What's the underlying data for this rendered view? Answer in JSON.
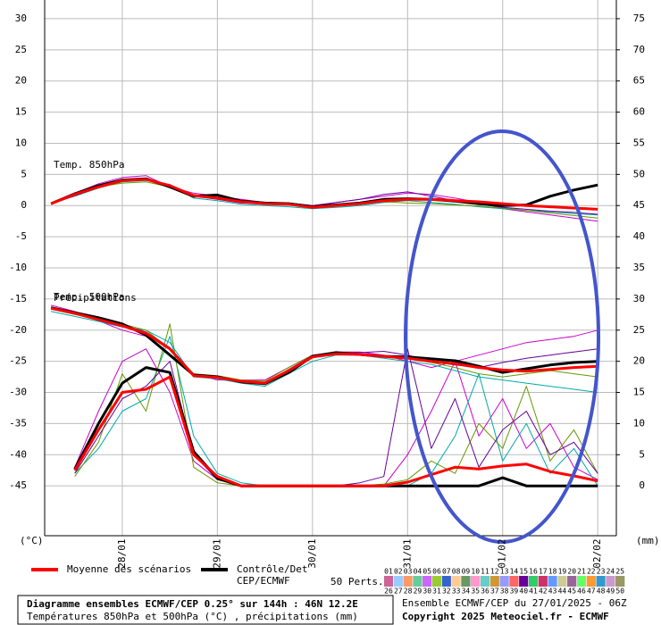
{
  "chart_data": {
    "type": "line",
    "title": "Diagramme ensembles ECMWF/CEP 0.25° sur 144h : 46N 12.2E",
    "subtitle": "Températures 850hPa et 500hPa (°C) , précipitations (mm)",
    "run_label": "Ensemble ECMWF/CEP du 27/01/2025 - 06Z",
    "copyright": "Copyright 2025 Meteociel.fr - ECMWF",
    "y_label": "(°C)",
    "y2_label": "(mm)",
    "annotations": [
      "Temp. 850hPa",
      "Temp. 500hPa",
      "Précipitations"
    ],
    "perturbations_label": "50 Perts.",
    "grid": true,
    "x": [
      6,
      12,
      18,
      24,
      30,
      36,
      42,
      48,
      54,
      60,
      66,
      72,
      78,
      84,
      90,
      96,
      102,
      108,
      114,
      120,
      126,
      132,
      138,
      144
    ],
    "xlim": [
      4.4,
      148.7
    ],
    "xticks": [
      {
        "value": 24,
        "label": "28/01"
      },
      {
        "value": 48,
        "label": "29/01"
      },
      {
        "value": 72,
        "label": "30/01"
      },
      {
        "value": 96,
        "label": "31/01"
      },
      {
        "value": 120,
        "label": "01/02"
      },
      {
        "value": 144,
        "label": "02/02"
      }
    ],
    "ylim": [
      -53,
      33
    ],
    "yticks": [
      -45,
      -40,
      -35,
      -30,
      -25,
      -20,
      -15,
      -10,
      -5,
      0,
      5,
      10,
      15,
      20,
      25,
      30
    ],
    "y2lim": [
      -8,
      78
    ],
    "y2ticks": [
      0,
      5,
      10,
      15,
      20,
      25,
      30,
      35,
      40,
      45,
      50,
      55,
      60,
      65,
      70,
      75
    ],
    "series": [
      {
        "name": [
          "Moyenne des scénarios"
        ],
        "color": "#ff0000",
        "t850": [
          0.3,
          1.8,
          3,
          4,
          4.2,
          3.2,
          1.6,
          1.2,
          0.6,
          0.3,
          0.2,
          -0.3,
          0,
          0.3,
          0.8,
          1,
          1,
          0.8,
          0.6,
          0.3,
          0,
          -0.2,
          -0.4,
          -0.6
        ],
        "t500": [
          -16.5,
          -17.3,
          -18.3,
          -19.3,
          -20.5,
          -23,
          -27.3,
          -27.6,
          -28.2,
          -28.5,
          -26.5,
          -24.3,
          -23.8,
          -23.9,
          -24.2,
          -24.5,
          -25,
          -25.4,
          -26,
          -26.4,
          -26.6,
          -26.3,
          -26,
          -25.8
        ],
        "precip": [
          null,
          2.5,
          9,
          15,
          15.5,
          17.5,
          5,
          1.5,
          0,
          0,
          0,
          0,
          0,
          0,
          0,
          0.6,
          1.8,
          3,
          2.7,
          3.2,
          3.5,
          2.3,
          1.6,
          0.8
        ]
      },
      {
        "name": [
          "Contrôle/Det",
          "CEP/ECMWF"
        ],
        "color": "#000000",
        "t850": [
          0.3,
          1.9,
          3.2,
          4.1,
          4.3,
          3,
          1.5,
          1.7,
          0.7,
          0.4,
          0.3,
          -0.2,
          0.1,
          0.4,
          1,
          1.1,
          1,
          0.7,
          0.3,
          0,
          0.1,
          1.5,
          2.5,
          3.3
        ],
        "t500": [
          -16.4,
          -17.2,
          -18,
          -19,
          -20.8,
          -24,
          -27.2,
          -27.5,
          -28.3,
          -28.6,
          -26.8,
          -24.2,
          -23.6,
          -23.9,
          -24.2,
          -24.3,
          -24.6,
          -24.9,
          -25.8,
          -26.8,
          -26.2,
          -25.6,
          -25.2,
          -25
        ],
        "precip": [
          null,
          2.7,
          10,
          16.5,
          19,
          18.2,
          5.5,
          1.2,
          0,
          0,
          0,
          0,
          0,
          0,
          0,
          0,
          0,
          0,
          0,
          1.3,
          0,
          0,
          0,
          0
        ]
      }
    ],
    "perturbations": [
      {
        "label": "01",
        "color": "#cc00cc",
        "t850": [
          0.2,
          2,
          3.5,
          4.5,
          4.8,
          3,
          2,
          1.5,
          1,
          0.5,
          0.3,
          -0.2,
          0.5,
          1,
          1.5,
          2,
          1.8,
          1.2,
          0.5,
          -0.5,
          -1,
          -1.5,
          -2,
          -2.5
        ],
        "t500": [
          -16,
          -17,
          -18.5,
          -20,
          -21,
          -24,
          -27,
          -28,
          -28,
          -28,
          -26,
          -24,
          -23.5,
          -23.5,
          -24,
          -25,
          -26,
          -25,
          -24,
          -23,
          -22,
          -21.5,
          -21,
          -20
        ],
        "precip": [
          null,
          3,
          12,
          20,
          22,
          15,
          4,
          1,
          0,
          0,
          0,
          0,
          0,
          0,
          0,
          5,
          12,
          20,
          8,
          14,
          6,
          10,
          3,
          1
        ]
      },
      {
        "label": "02",
        "color": "#a0a0ff"
      },
      {
        "label": "03",
        "color": "#ff9999"
      },
      {
        "label": "04",
        "color": "#66cc66"
      },
      {
        "label": "05",
        "color": "#996633"
      },
      {
        "label": "06",
        "color": "#33cccc"
      },
      {
        "label": "07",
        "color": "#ff66cc"
      },
      {
        "label": "08",
        "color": "#cccc33"
      },
      {
        "label": "09",
        "color": "#6666cc"
      },
      {
        "label": "10",
        "color": "#cc6633"
      },
      {
        "label": "11",
        "color": "#99cc99"
      },
      {
        "label": "12",
        "color": "#cc99ff"
      },
      {
        "label": "13",
        "color": "#00aaaa",
        "t850": [
          0.4,
          1.5,
          2.8,
          3.8,
          4,
          3.4,
          1.2,
          0.8,
          0.2,
          0,
          -0.2,
          -0.5,
          -0.3,
          0,
          0.5,
          0.8,
          0.5,
          0.2,
          -0.2,
          -0.5,
          -0.8,
          -1,
          -1.3,
          -1.5
        ],
        "t500": [
          -17,
          -17.8,
          -18.6,
          -19.5,
          -20,
          -22,
          -27.5,
          -27.8,
          -28.5,
          -29,
          -27,
          -25,
          -24,
          -24,
          -24.5,
          -25,
          -25.5,
          -26.5,
          -27.5,
          -28,
          -28.5,
          -29,
          -29.5,
          -30
        ],
        "precip": [
          null,
          2,
          6,
          12,
          14,
          24,
          8,
          2,
          0.5,
          0,
          0,
          0,
          0,
          0,
          0,
          0,
          2,
          8,
          18,
          4,
          10,
          2,
          6,
          0
        ]
      },
      {
        "label": "14",
        "color": "#ff3366"
      },
      {
        "label": "15",
        "color": "#3399ff"
      },
      {
        "label": "16",
        "color": "#99ff66"
      },
      {
        "label": "17",
        "color": "#cc3399"
      },
      {
        "label": "18",
        "color": "#66ffcc"
      },
      {
        "label": "19",
        "color": "#ffcc66"
      },
      {
        "label": "20",
        "color": "#9966cc"
      },
      {
        "label": "21",
        "color": "#33ff99"
      },
      {
        "label": "22",
        "color": "#ff6633"
      },
      {
        "label": "23",
        "color": "#6699cc"
      },
      {
        "label": "24",
        "color": "#cc9966"
      },
      {
        "label": "25",
        "color": "#669900",
        "t850": [
          0.3,
          1.7,
          3,
          3.6,
          3.8,
          3,
          1.8,
          1.3,
          0.6,
          0.4,
          0.4,
          0,
          0.2,
          0.5,
          0.6,
          0.4,
          0.3,
          0.1,
          -0.1,
          -0.4,
          -0.8,
          -1.2,
          -1.6,
          -2
        ],
        "t500": [
          -16.6,
          -17.5,
          -18.2,
          -19,
          -20,
          -23,
          -27,
          -27.3,
          -28,
          -28.2,
          -26,
          -24,
          -23.8,
          -24,
          -24.3,
          -24.6,
          -25.2,
          -26,
          -27,
          -27.5,
          -27,
          -26.5,
          -27,
          -27.5
        ],
        "precip": [
          null,
          1.5,
          7,
          18,
          12,
          26,
          3,
          0.5,
          0,
          0,
          0,
          0,
          0,
          0,
          0.3,
          1,
          4,
          2,
          10,
          6,
          16,
          4,
          9,
          2
        ]
      },
      {
        "label": "26",
        "color": "#cc6699"
      },
      {
        "label": "27",
        "color": "#99ccff"
      },
      {
        "label": "28",
        "color": "#ff9966"
      },
      {
        "label": "29",
        "color": "#66cc99"
      },
      {
        "label": "30",
        "color": "#cc66ff"
      },
      {
        "label": "31",
        "color": "#99cc33"
      },
      {
        "label": "32",
        "color": "#3366cc"
      },
      {
        "label": "33",
        "color": "#ffcc99"
      },
      {
        "label": "34",
        "color": "#669966"
      },
      {
        "label": "35",
        "color": "#ff99cc"
      },
      {
        "label": "36",
        "color": "#66cccc"
      },
      {
        "label": "37",
        "color": "#cc9933"
      },
      {
        "label": "38",
        "color": "#9999ff"
      },
      {
        "label": "39",
        "color": "#ff6666"
      },
      {
        "label": "40",
        "color": "#660099",
        "t850": [
          0.2,
          1.6,
          2.9,
          3.9,
          4.2,
          3.3,
          1.5,
          1,
          0.4,
          0.3,
          0.4,
          0,
          0.5,
          1,
          1.8,
          2.2,
          1.5,
          0.8,
          0.2,
          -0.3,
          -0.6,
          -0.9,
          -1.1,
          -1.4
        ],
        "t500": [
          -16.3,
          -17.1,
          -18,
          -19.1,
          -20.3,
          -22.8,
          -27.1,
          -27.4,
          -28.4,
          -28.6,
          -26.3,
          -24.1,
          -23.7,
          -23.6,
          -23.4,
          -24,
          -25,
          -25.6,
          -26,
          -25.2,
          -24.5,
          -24,
          -23.5,
          -23
        ],
        "precip": [
          null,
          2,
          8,
          14,
          16,
          20,
          5,
          1,
          0,
          0,
          0,
          0,
          0,
          0.5,
          1.5,
          22,
          6,
          14,
          3,
          9,
          12,
          5,
          7,
          2
        ]
      },
      {
        "label": "41",
        "color": "#33cc66"
      },
      {
        "label": "42",
        "color": "#cc3366"
      },
      {
        "label": "43",
        "color": "#6699ff"
      },
      {
        "label": "44",
        "color": "#cccc99"
      },
      {
        "label": "45",
        "color": "#996699"
      },
      {
        "label": "46",
        "color": "#66ff66"
      },
      {
        "label": "47",
        "color": "#ff9933"
      },
      {
        "label": "48",
        "color": "#3399cc"
      },
      {
        "label": "49",
        "color": "#cc99cc"
      },
      {
        "label": "50",
        "color": "#999966"
      }
    ]
  }
}
